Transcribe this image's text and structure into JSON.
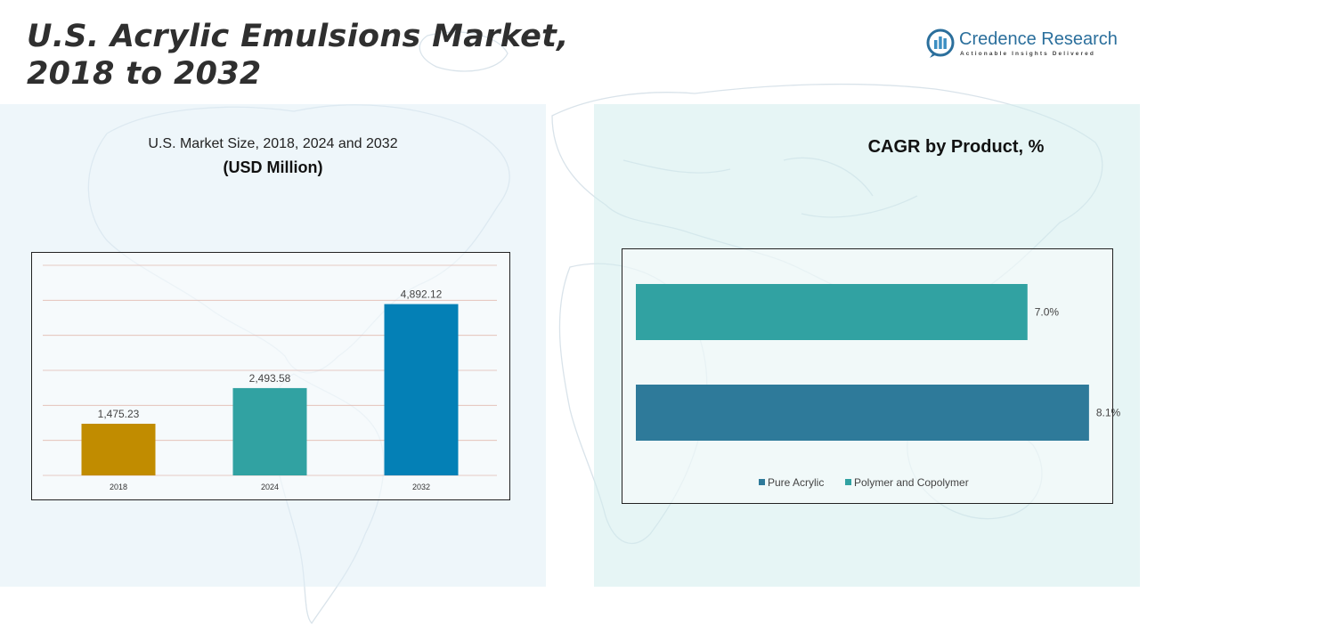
{
  "header": {
    "title_line1": "U.S. Acrylic Emulsions Market,",
    "title_line2": "2018 to 2032"
  },
  "logo": {
    "name": "Credence Research",
    "tagline": "Actionable Insights Delivered",
    "colors": {
      "bars": "#3d8fc2",
      "ring": "#2b6f9c"
    }
  },
  "left_panel": {
    "subtitle": "U.S. Market Size, 2018, 2024 and 2032",
    "unit": "(USD Million)"
  },
  "right_panel": {
    "title": "CAGR by Product, %"
  },
  "chart_data": [
    {
      "type": "bar",
      "categories": [
        "2018",
        "2024",
        "2032"
      ],
      "values": [
        1475.23,
        2493.58,
        4892.12
      ],
      "value_labels": [
        "1,475.23",
        "2,493.58",
        "4,892.12"
      ],
      "colors": [
        "#c18c00",
        "#31a2a2",
        "#0480b6"
      ],
      "ylim": [
        0,
        6000
      ],
      "grid": true,
      "xlabel": "",
      "ylabel": ""
    },
    {
      "type": "bar",
      "orientation": "horizontal",
      "categories": [
        "Polymer and Copolymer",
        "Pure Acrylic"
      ],
      "values": [
        7.0,
        8.1
      ],
      "value_labels": [
        "7.0%",
        "8.1%"
      ],
      "colors": [
        "#31a2a2",
        "#2e7a9a"
      ],
      "legend": [
        "Pure Acrylic",
        "Polymer and Copolymer"
      ],
      "legend_colors": [
        "#2e7a9a",
        "#31a2a2"
      ],
      "legend_position": "bottom",
      "xlim": [
        0,
        8.5
      ],
      "grid": false
    }
  ]
}
